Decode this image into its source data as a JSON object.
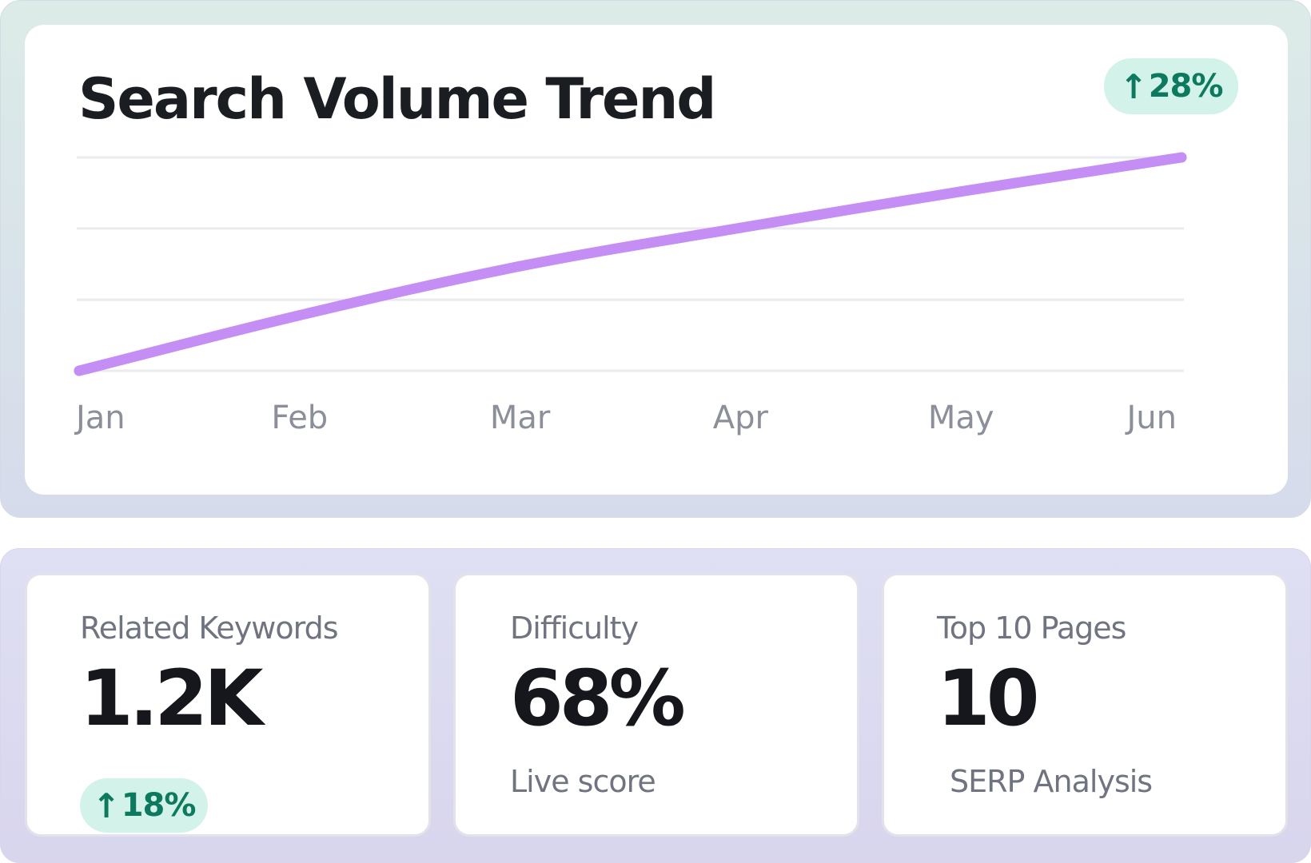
{
  "trend_panel": {
    "title": "Search Volume Trend",
    "change_badge": {
      "arrow": "↑",
      "value": "28%",
      "icon": "arrow-up-icon",
      "color": "#0d7a5f",
      "background": "#d3f2ea"
    }
  },
  "chart_data": {
    "type": "line",
    "title": "Search Volume Trend",
    "categories": [
      "Jan",
      "Feb",
      "Mar",
      "Apr",
      "May",
      "Jun"
    ],
    "series": [
      {
        "values": [
          0,
          26,
          49,
          67,
          84,
          100
        ],
        "color": "#c48ef4"
      }
    ],
    "ylim": [
      0,
      100
    ],
    "y_gridlines": [
      0,
      33.3,
      66.7,
      100
    ],
    "y_axis_labels_shown": false,
    "grid": true,
    "legend": "none"
  },
  "stats": [
    {
      "label": "Related Keywords",
      "value": "1.2K",
      "badge": {
        "arrow": "↑",
        "value": "18%",
        "icon": "arrow-up-icon"
      }
    },
    {
      "label": "Difficulty",
      "value": "68%",
      "sub": "Live score"
    },
    {
      "label": "Top 10 Pages",
      "value": "10",
      "sub": "SERP Analysis"
    }
  ]
}
